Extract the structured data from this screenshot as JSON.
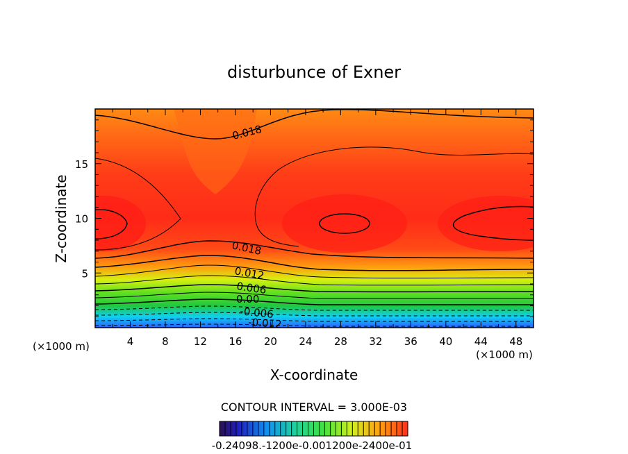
{
  "chart_data": {
    "type": "heatmap",
    "title": "disturbunce of Exner",
    "xlabel": "X-coordinate",
    "ylabel": "Z-coordinate",
    "x_unit": "(×1000 m)",
    "z_unit": "(×1000 m)",
    "xlim": [
      0,
      50
    ],
    "ylim": [
      0,
      20
    ],
    "x_ticks": [
      "4",
      "8",
      "12",
      "16",
      "20",
      "24",
      "28",
      "32",
      "36",
      "40",
      "44",
      "48"
    ],
    "y_ticks": [
      "5",
      "10",
      "15"
    ],
    "contour_labels": [
      "0.018",
      "0.018",
      "0.012",
      "0.006",
      "0.00",
      "-0.006",
      "-0.012"
    ],
    "contour_interval_text": "CONTOUR INTERVAL = 3.000E-03",
    "colorbar": {
      "min": -0.024,
      "max": 0.024,
      "tick_text": "-0.24098.-1200e-0.001200e-2400e-01"
    },
    "colors": {
      "high": "#ff2a1a",
      "upper": "#ff5a1a",
      "mid_orange": "#ff9a10",
      "yellow": "#e0ff10",
      "green": "#20d020",
      "cyan": "#10d0f0",
      "blue": "#2060ff"
    }
  }
}
